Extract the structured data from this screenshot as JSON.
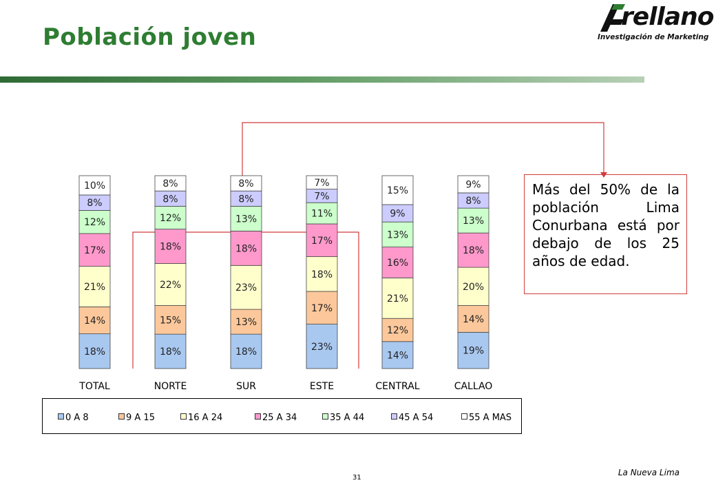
{
  "page_title": "Población joven",
  "logo": {
    "word": "rellano",
    "tagline": "Investigación de Marketing"
  },
  "callout_text": "Más del 50% de la población Lima Conurbana está por debajo de los 25 años de edad.",
  "footer": {
    "right": "La Nueva Lima",
    "page": "31"
  },
  "colors": {
    "title": "#2e7d32",
    "callout_border": "#d13b3b",
    "series": [
      "#a9c8f0",
      "#fcc89b",
      "#ffffcc",
      "#ff99cc",
      "#ccffcc",
      "#ccccff",
      "#ffffff"
    ]
  },
  "chart_data": {
    "type": "bar",
    "stacked": true,
    "normalized": true,
    "categories": [
      "TOTAL",
      "NORTE",
      "SUR",
      "ESTE",
      "CENTRAL",
      "CALLAO"
    ],
    "series": [
      {
        "name": "0 A 8",
        "values": [
          18,
          18,
          18,
          23,
          14,
          19
        ]
      },
      {
        "name": "9 A 15",
        "values": [
          14,
          15,
          13,
          17,
          12,
          14
        ]
      },
      {
        "name": "16 A 24",
        "values": [
          21,
          22,
          23,
          18,
          21,
          20
        ]
      },
      {
        "name": "25 A 34",
        "values": [
          17,
          18,
          18,
          17,
          16,
          18
        ]
      },
      {
        "name": "35 A 44",
        "values": [
          12,
          12,
          13,
          11,
          13,
          13
        ]
      },
      {
        "name": "45 A 54",
        "values": [
          8,
          8,
          8,
          7,
          9,
          8
        ]
      },
      {
        "name": "55 A MAS",
        "values": [
          10,
          8,
          8,
          7,
          15,
          9
        ]
      }
    ],
    "value_suffix": "%",
    "legend_position": "bottom",
    "grid": false
  }
}
